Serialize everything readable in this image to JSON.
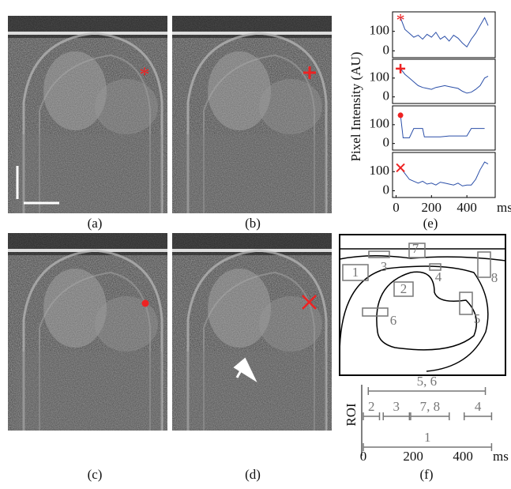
{
  "panel_labels": [
    "(a)",
    "(b)",
    "(e)",
    "(c)",
    "(d)",
    "(f)"
  ],
  "intensity_ylabel": "Pixel Intensity (AU)",
  "chart_data": [
    {
      "type": "line",
      "x": [
        25,
        50,
        75,
        100,
        125,
        150,
        175,
        200,
        225,
        250,
        275,
        300,
        325,
        350,
        375,
        400,
        425,
        450,
        475,
        500,
        520
      ],
      "values": [
        170,
        110,
        90,
        70,
        80,
        60,
        85,
        70,
        95,
        60,
        75,
        50,
        80,
        65,
        40,
        20,
        60,
        90,
        130,
        170,
        130
      ],
      "color": "#2b4fa8",
      "xlim": [
        -20,
        560
      ],
      "ylim": [
        -35,
        200
      ],
      "yticks": [
        0,
        100
      ]
    },
    {
      "type": "line",
      "x": [
        25,
        50,
        75,
        100,
        125,
        150,
        175,
        200,
        225,
        250,
        275,
        300,
        325,
        350,
        375,
        400,
        425,
        450,
        475,
        500,
        520
      ],
      "values": [
        150,
        120,
        100,
        80,
        60,
        50,
        45,
        40,
        50,
        55,
        60,
        55,
        50,
        45,
        30,
        20,
        25,
        40,
        60,
        100,
        110
      ],
      "color": "#2b4fa8",
      "xlim": [
        -20,
        560
      ],
      "ylim": [
        -35,
        200
      ],
      "yticks": [
        0,
        100
      ]
    },
    {
      "type": "line",
      "x": [
        25,
        40,
        75,
        100,
        150,
        160,
        200,
        250,
        300,
        350,
        400,
        425,
        450,
        500
      ],
      "values": [
        150,
        30,
        30,
        80,
        80,
        35,
        35,
        35,
        40,
        40,
        40,
        80,
        80,
        80
      ],
      "color": "#2b4fa8",
      "xlim": [
        -20,
        560
      ],
      "ylim": [
        -35,
        200
      ],
      "yticks": [
        0,
        100
      ]
    },
    {
      "type": "line",
      "x": [
        25,
        50,
        75,
        100,
        125,
        150,
        175,
        200,
        225,
        250,
        275,
        300,
        325,
        350,
        375,
        400,
        425,
        450,
        475,
        500,
        520
      ],
      "values": [
        120,
        90,
        60,
        50,
        40,
        50,
        35,
        40,
        30,
        45,
        40,
        35,
        30,
        40,
        25,
        30,
        30,
        60,
        110,
        150,
        140
      ],
      "color": "#2b4fa8",
      "xlim": [
        -20,
        560
      ],
      "ylim": [
        -35,
        200
      ],
      "yticks": [
        0,
        100
      ],
      "xticks": [
        0,
        200,
        400
      ],
      "xunit": "ms"
    }
  ],
  "diagram": {
    "rois": [
      "1",
      "2",
      "3",
      "4",
      "5",
      "6",
      "7",
      "8"
    ]
  },
  "roi_timeline": {
    "ylabel": "ROI",
    "xlim": [
      0,
      520
    ],
    "xticks": [
      0,
      200,
      400
    ],
    "xunit": "ms",
    "intervals": [
      {
        "label": "5, 6",
        "start": 20,
        "end": 490
      },
      {
        "label": "2",
        "start": 0,
        "end": 65
      },
      {
        "label": "3",
        "start": 80,
        "end": 185
      },
      {
        "label": "7, 8",
        "start": 190,
        "end": 345
      },
      {
        "label": "4",
        "start": 405,
        "end": 515
      },
      {
        "label": "1",
        "start": 0,
        "end": 515
      }
    ]
  }
}
